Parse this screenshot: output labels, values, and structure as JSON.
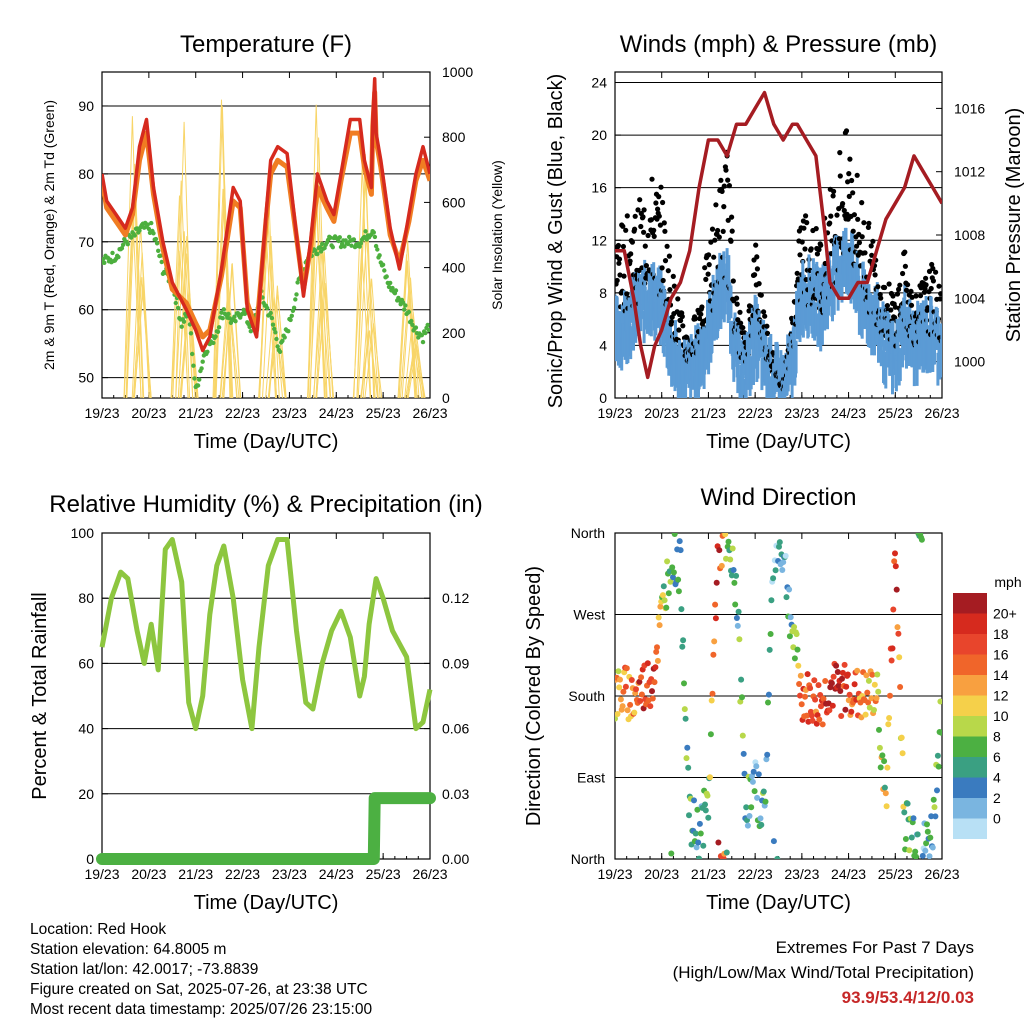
{
  "chart_data": [
    {
      "type": "line",
      "title": "Temperature (F)",
      "xlabel": "Time (Day/UTC)",
      "ylabel": "2m & 9m T (Red, Orange) & 2m Td (Green)",
      "ylabel_right": "Solar Insolation (Yellow)",
      "x_ticks": [
        "19/23",
        "20/23",
        "21/23",
        "22/23",
        "23/23",
        "24/23",
        "25/23",
        "26/23"
      ],
      "xlim": [
        0,
        7
      ],
      "ylim": [
        47,
        95
      ],
      "y_ticks": [
        50,
        60,
        70,
        80,
        90
      ],
      "ylim_right": [
        0,
        1000
      ],
      "y_ticks_right": [
        0,
        200,
        400,
        600,
        800,
        1000
      ],
      "grid": "horizontal",
      "series": [
        {
          "name": "2m T",
          "axis": "left",
          "color": "#d62a1e",
          "x": [
            0,
            0.1,
            0.3,
            0.5,
            0.65,
            0.8,
            0.95,
            1.1,
            1.3,
            1.5,
            1.8,
            2.0,
            2.15,
            2.3,
            2.55,
            2.8,
            2.95,
            3.1,
            3.3,
            3.5,
            3.6,
            3.75,
            3.95,
            4.3,
            4.45,
            4.6,
            4.8,
            4.95,
            5.1,
            5.3,
            5.5,
            5.6,
            5.75,
            5.78,
            5.82,
            5.85,
            5.95,
            6.15,
            6.35,
            6.55,
            6.7,
            6.85,
            7.0
          ],
          "values": [
            80,
            76,
            74,
            72,
            75,
            84,
            88,
            78,
            70,
            64,
            60,
            57,
            54,
            56,
            66,
            78,
            76,
            60,
            56,
            74,
            82,
            84,
            83,
            62,
            70,
            80,
            76,
            74,
            80,
            88,
            88,
            82,
            78,
            88,
            94,
            86,
            82,
            72,
            66,
            74,
            80,
            84,
            80
          ]
        },
        {
          "name": "9m T",
          "axis": "left",
          "color": "#f07d22",
          "x": [
            0,
            0.1,
            0.3,
            0.5,
            0.65,
            0.8,
            0.95,
            1.1,
            1.3,
            1.5,
            1.8,
            2.0,
            2.15,
            2.3,
            2.55,
            2.8,
            2.95,
            3.1,
            3.3,
            3.5,
            3.6,
            3.75,
            3.95,
            4.3,
            4.45,
            4.6,
            4.8,
            4.95,
            5.1,
            5.3,
            5.5,
            5.6,
            5.75,
            5.78,
            5.82,
            5.85,
            5.95,
            6.15,
            6.35,
            6.55,
            6.7,
            6.85,
            7.0
          ],
          "values": [
            79,
            75,
            73,
            71,
            74,
            82,
            86,
            77,
            69,
            63,
            61,
            58,
            56,
            57,
            65,
            76,
            75,
            61,
            57,
            73,
            80,
            82,
            81,
            63,
            69,
            78,
            75,
            73,
            79,
            86,
            86,
            81,
            77,
            87,
            92,
            85,
            81,
            71,
            67,
            73,
            79,
            82,
            79
          ]
        },
        {
          "name": "2m Td",
          "axis": "left",
          "color": "#4caf3e",
          "x": [
            0,
            0.3,
            0.5,
            0.7,
            0.85,
            0.95,
            1.05,
            1.15,
            1.3,
            1.5,
            1.7,
            1.85,
            2.0,
            2.2,
            2.4,
            2.6,
            2.8,
            3.0,
            3.2,
            3.4,
            3.6,
            3.8,
            4.0,
            4.2,
            4.4,
            4.6,
            4.8,
            5.0,
            5.2,
            5.5,
            5.8,
            5.9,
            6.0,
            6.1,
            6.3,
            6.5,
            6.7,
            6.85,
            7.0
          ],
          "values": [
            67,
            68,
            70,
            71,
            72,
            72,
            72,
            70,
            66,
            64,
            58,
            60,
            48,
            54,
            56,
            60,
            58,
            60,
            57,
            62,
            59,
            54,
            58,
            64,
            68,
            69,
            70,
            70,
            70,
            70,
            72,
            68,
            66,
            64,
            62,
            60,
            57,
            56,
            58
          ]
        },
        {
          "name": "Solar Insolation",
          "axis": "right",
          "color": "#f8d568",
          "peaks_x": [
            0.7,
            0.85,
            1.7,
            1.85,
            2.6,
            2.75,
            3.55,
            3.7,
            4.6,
            4.75,
            5.6,
            5.75,
            6.55,
            6.7
          ],
          "peaks_values": [
            920,
            600,
            860,
            500,
            950,
            500,
            750,
            350,
            920,
            480,
            800,
            400,
            650,
            300
          ]
        }
      ]
    },
    {
      "type": "scatter",
      "title": "Winds (mph) & Pressure (mb)",
      "xlabel": "Time (Day/UTC)",
      "ylabel": "Sonic/Prop Wind & Gust (Blue, Black)",
      "ylabel_right": "Station Pressure (Maroon)",
      "x_ticks": [
        "19/23",
        "20/23",
        "21/23",
        "22/23",
        "23/23",
        "24/23",
        "25/23",
        "26/23"
      ],
      "xlim": [
        0,
        7
      ],
      "ylim": [
        0,
        24.8
      ],
      "y_ticks": [
        0,
        4,
        8,
        12,
        16,
        20,
        24
      ],
      "ylim_right": [
        997.7,
        1018.3
      ],
      "y_ticks_right": [
        1000,
        1004,
        1008,
        1012,
        1016
      ],
      "grid": "horizontal",
      "series": [
        {
          "name": "Gust",
          "axis": "left",
          "color": "#000000",
          "x": [
            0,
            0.25,
            0.5,
            0.75,
            1.0,
            1.2,
            1.4,
            1.6,
            1.8,
            2.0,
            2.2,
            2.4,
            2.6,
            2.8,
            3.0,
            3.2,
            3.4,
            3.6,
            3.8,
            4.0,
            4.2,
            4.4,
            4.6,
            4.8,
            5.0,
            5.2,
            5.4,
            5.6,
            5.8,
            6.0,
            6.2,
            6.4,
            6.6,
            6.8,
            7.0
          ],
          "values": [
            11,
            12,
            13,
            15,
            14,
            9,
            6,
            4,
            7,
            10,
            14,
            17,
            7,
            4,
            11,
            6,
            3,
            1,
            6,
            13,
            12,
            11,
            14,
            17,
            18,
            15,
            12,
            10,
            8,
            7,
            10,
            7,
            8,
            9,
            7
          ]
        },
        {
          "name": "Wind",
          "axis": "left",
          "color": "#5b9bd5",
          "x": [
            0,
            0.25,
            0.5,
            0.75,
            1.0,
            1.2,
            1.4,
            1.6,
            1.8,
            2.0,
            2.2,
            2.4,
            2.6,
            2.8,
            3.0,
            3.2,
            3.4,
            3.6,
            3.8,
            4.0,
            4.2,
            4.4,
            4.6,
            4.8,
            5.0,
            5.2,
            5.4,
            5.6,
            5.8,
            6.0,
            6.2,
            6.4,
            6.6,
            6.8,
            7.0
          ],
          "values": [
            5,
            6,
            7,
            8,
            7,
            4,
            2,
            2,
            3,
            5,
            8,
            9,
            3,
            2,
            5,
            3,
            1.5,
            1,
            3,
            8,
            8,
            7,
            9,
            10,
            11,
            8,
            7,
            6,
            4,
            3,
            6,
            4,
            5,
            5,
            4
          ]
        },
        {
          "name": "Station Pressure",
          "axis": "right",
          "color": "#a51c22",
          "x": [
            0,
            0.2,
            0.4,
            0.55,
            0.7,
            0.85,
            1.0,
            1.2,
            1.4,
            1.6,
            1.8,
            2.0,
            2.2,
            2.4,
            2.6,
            2.8,
            3.0,
            3.2,
            3.4,
            3.6,
            3.8,
            3.9,
            4.1,
            4.3,
            4.5,
            4.6,
            4.8,
            5.0,
            5.2,
            5.4,
            5.6,
            5.8,
            6.0,
            6.2,
            6.4,
            6.6,
            6.8,
            7.0
          ],
          "values": [
            1007,
            1007,
            1004,
            1001,
            999,
            1001,
            1002,
            1004,
            1005,
            1007,
            1011,
            1014,
            1014,
            1013,
            1015,
            1015,
            1016,
            1017,
            1015,
            1014,
            1015,
            1015,
            1014,
            1013,
            1008,
            1005,
            1004,
            1004,
            1005,
            1005,
            1007,
            1009,
            1010,
            1011,
            1013,
            1012,
            1011,
            1010
          ]
        }
      ]
    },
    {
      "type": "line",
      "title": "Relative Humidity (%) & Precipitation (in)",
      "xlabel": "Time (Day/UTC)",
      "ylabel": "Percent & Total Rainfall",
      "x_ticks": [
        "19/23",
        "20/23",
        "21/23",
        "22/23",
        "23/23",
        "24/23",
        "25/23",
        "26/23"
      ],
      "xlim": [
        0,
        7
      ],
      "ylim": [
        0,
        100
      ],
      "y_ticks": [
        0,
        20,
        40,
        60,
        80,
        100
      ],
      "ylim_right": [
        0,
        0.15
      ],
      "y_ticks_right": [
        "0.00",
        "0.03",
        "0.06",
        "0.09",
        "0.12"
      ],
      "grid": "horizontal",
      "series": [
        {
          "name": "Relative Humidity",
          "axis": "left",
          "color": "#8dc63f",
          "x": [
            0,
            0.2,
            0.4,
            0.55,
            0.75,
            0.9,
            1.05,
            1.2,
            1.35,
            1.5,
            1.7,
            1.85,
            2.0,
            2.15,
            2.3,
            2.45,
            2.6,
            2.8,
            3.0,
            3.2,
            3.35,
            3.55,
            3.75,
            3.95,
            4.15,
            4.35,
            4.5,
            4.7,
            4.9,
            5.1,
            5.3,
            5.5,
            5.6,
            5.7,
            5.85,
            6.0,
            6.2,
            6.35,
            6.5,
            6.7,
            6.85,
            7.0
          ],
          "values": [
            65,
            80,
            88,
            86,
            70,
            60,
            72,
            58,
            95,
            98,
            85,
            48,
            40,
            50,
            75,
            90,
            96,
            80,
            55,
            40,
            65,
            90,
            98,
            98,
            70,
            48,
            46,
            60,
            70,
            76,
            68,
            50,
            56,
            72,
            86,
            80,
            70,
            66,
            62,
            40,
            42,
            52
          ]
        },
        {
          "name": "Total Rainfall",
          "axis": "right",
          "color": "#4cb042",
          "x": [
            0,
            5.8,
            5.82,
            7.0
          ],
          "values": [
            0.0,
            0.0,
            0.028,
            0.028
          ]
        }
      ]
    },
    {
      "type": "scatter",
      "title": "Wind Direction",
      "xlabel": "Time (Day/UTC)",
      "ylabel": "Direction (Colored By Speed)",
      "x_ticks": [
        "19/23",
        "20/23",
        "21/23",
        "22/23",
        "23/23",
        "24/23",
        "25/23",
        "26/23"
      ],
      "xlim": [
        0,
        7
      ],
      "y_ticks": [
        "North",
        "East",
        "South",
        "West",
        "North"
      ],
      "ylim": [
        0,
        360
      ],
      "grid": "horizontal",
      "legend": {
        "title": "mph",
        "position": "right",
        "labels": [
          "20+",
          "18",
          "16",
          "14",
          "12",
          "10",
          "8",
          "6",
          "4",
          "2",
          "0"
        ],
        "colors": [
          "#a51c22",
          "#d62a1e",
          "#e8452c",
          "#f0652a",
          "#f8a040",
          "#f5d04a",
          "#b8d84a",
          "#4cb042",
          "#3aa082",
          "#3a7bbf",
          "#7ab5e0",
          "#b8e0f5"
        ]
      },
      "series": [
        {
          "name": "Direction",
          "x": [
            0,
            0.2,
            0.4,
            0.6,
            0.8,
            1.0,
            1.2,
            1.4,
            1.6,
            1.8,
            2.0,
            2.2,
            2.4,
            2.6,
            2.8,
            3.0,
            3.2,
            3.4,
            3.6,
            3.8,
            4.0,
            4.2,
            4.4,
            4.6,
            4.8,
            5.0,
            5.2,
            5.4,
            5.6,
            5.8,
            6.0,
            6.2,
            6.4,
            6.6,
            6.8,
            7.0
          ],
          "values": [
            180,
            185,
            178,
            190,
            200,
            270,
            340,
            320,
            40,
            30,
            60,
            350,
            340,
            300,
            60,
            80,
            50,
            350,
            340,
            250,
            180,
            175,
            170,
            190,
            185,
            190,
            180,
            178,
            185,
            60,
            340,
            40,
            30,
            10,
            30,
            180
          ],
          "speeds": [
            6,
            7,
            8,
            9,
            10,
            5,
            4,
            3,
            4,
            3,
            4,
            11,
            4,
            3,
            3,
            2,
            3,
            2,
            1,
            3,
            8,
            9,
            8,
            10,
            11,
            9,
            8,
            7,
            6,
            5,
            10,
            4,
            3,
            2,
            3,
            5
          ]
        }
      ]
    }
  ],
  "footer": {
    "location": "Location: Red Hook",
    "elevation": "Station elevation: 64.8005 m",
    "latlon": "Station lat/lon: 42.0017; -73.8839",
    "created": "Figure created on Sat, 2025-07-26, at 23:38 UTC",
    "timestamp": "Most recent data timestamp: 2025/07/26 23:15:00",
    "extremes_title": "Extremes For Past 7 Days",
    "extremes_sub": "(High/Low/Max Wind/Total Precipitation)",
    "extremes_values": "93.9/53.4/12/0.03"
  }
}
